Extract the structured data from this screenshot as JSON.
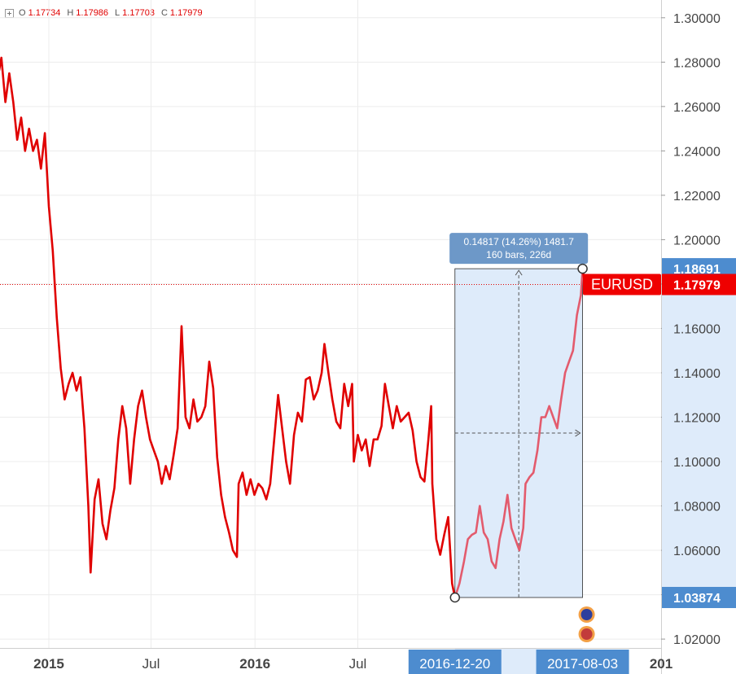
{
  "legend": {
    "open_label": "O",
    "open": "1.17734",
    "high_label": "H",
    "high": "1.17986",
    "low_label": "L",
    "low": "1.17703",
    "close_label": "C",
    "close": "1.17979"
  },
  "chart_data": {
    "type": "line",
    "symbol": "EURUSD",
    "ylim": [
      1.016,
      1.308
    ],
    "y_ticks": [
      "1.30000",
      "1.28000",
      "1.26000",
      "1.24000",
      "1.22000",
      "1.20000",
      "1.18000",
      "1.16000",
      "1.14000",
      "1.12000",
      "1.10000",
      "1.08000",
      "1.06000",
      "1.04000",
      "1.02000"
    ],
    "y_tick_values": [
      1.3,
      1.28,
      1.26,
      1.24,
      1.22,
      1.2,
      1.18,
      1.16,
      1.14,
      1.12,
      1.1,
      1.08,
      1.06,
      1.04,
      1.02
    ],
    "x_start": "2014-09-25",
    "x_end": "2017-12-20",
    "x_ticks": [
      {
        "date": "2015-01-01",
        "label": "2015",
        "bold": true
      },
      {
        "date": "2015-07-01",
        "label": "Jul",
        "bold": false
      },
      {
        "date": "2016-01-01",
        "label": "2016",
        "bold": true
      },
      {
        "date": "2016-07-01",
        "label": "Jul",
        "bold": false
      },
      {
        "date": "2017-12-20",
        "label": "201",
        "bold": true
      }
    ],
    "grid": true,
    "series": [
      {
        "color": "#e00000",
        "points": [
          [
            "2014-09-25",
            1.295
          ],
          [
            "2014-10-02",
            1.272
          ],
          [
            "2014-10-09",
            1.282
          ],
          [
            "2014-10-16",
            1.262
          ],
          [
            "2014-10-23",
            1.275
          ],
          [
            "2014-10-30",
            1.262
          ],
          [
            "2014-11-06",
            1.245
          ],
          [
            "2014-11-13",
            1.255
          ],
          [
            "2014-11-20",
            1.24
          ],
          [
            "2014-11-27",
            1.25
          ],
          [
            "2014-12-04",
            1.24
          ],
          [
            "2014-12-11",
            1.245
          ],
          [
            "2014-12-18",
            1.232
          ],
          [
            "2014-12-25",
            1.248
          ],
          [
            "2015-01-01",
            1.215
          ],
          [
            "2015-01-08",
            1.195
          ],
          [
            "2015-01-15",
            1.165
          ],
          [
            "2015-01-22",
            1.142
          ],
          [
            "2015-01-29",
            1.128
          ],
          [
            "2015-02-05",
            1.135
          ],
          [
            "2015-02-12",
            1.14
          ],
          [
            "2015-02-19",
            1.132
          ],
          [
            "2015-02-26",
            1.138
          ],
          [
            "2015-03-05",
            1.115
          ],
          [
            "2015-03-12",
            1.08
          ],
          [
            "2015-03-16",
            1.05
          ],
          [
            "2015-03-23",
            1.083
          ],
          [
            "2015-03-30",
            1.092
          ],
          [
            "2015-04-06",
            1.072
          ],
          [
            "2015-04-13",
            1.065
          ],
          [
            "2015-04-20",
            1.078
          ],
          [
            "2015-04-27",
            1.088
          ],
          [
            "2015-05-04",
            1.11
          ],
          [
            "2015-05-11",
            1.125
          ],
          [
            "2015-05-18",
            1.115
          ],
          [
            "2015-05-25",
            1.09
          ],
          [
            "2015-06-01",
            1.11
          ],
          [
            "2015-06-08",
            1.125
          ],
          [
            "2015-06-15",
            1.132
          ],
          [
            "2015-06-22",
            1.12
          ],
          [
            "2015-06-29",
            1.11
          ],
          [
            "2015-07-06",
            1.105
          ],
          [
            "2015-07-13",
            1.1
          ],
          [
            "2015-07-20",
            1.09
          ],
          [
            "2015-07-27",
            1.098
          ],
          [
            "2015-08-03",
            1.092
          ],
          [
            "2015-08-10",
            1.103
          ],
          [
            "2015-08-17",
            1.115
          ],
          [
            "2015-08-24",
            1.161
          ],
          [
            "2015-08-31",
            1.12
          ],
          [
            "2015-09-07",
            1.115
          ],
          [
            "2015-09-14",
            1.128
          ],
          [
            "2015-09-21",
            1.118
          ],
          [
            "2015-09-28",
            1.12
          ],
          [
            "2015-10-05",
            1.125
          ],
          [
            "2015-10-12",
            1.145
          ],
          [
            "2015-10-19",
            1.133
          ],
          [
            "2015-10-26",
            1.102
          ],
          [
            "2015-11-02",
            1.085
          ],
          [
            "2015-11-09",
            1.075
          ],
          [
            "2015-11-16",
            1.068
          ],
          [
            "2015-11-23",
            1.06
          ],
          [
            "2015-11-30",
            1.057
          ],
          [
            "2015-12-03",
            1.09
          ],
          [
            "2015-12-10",
            1.095
          ],
          [
            "2015-12-17",
            1.085
          ],
          [
            "2015-12-24",
            1.092
          ],
          [
            "2015-12-31",
            1.085
          ],
          [
            "2016-01-07",
            1.09
          ],
          [
            "2016-01-14",
            1.088
          ],
          [
            "2016-01-21",
            1.083
          ],
          [
            "2016-01-28",
            1.09
          ],
          [
            "2016-02-04",
            1.11
          ],
          [
            "2016-02-11",
            1.13
          ],
          [
            "2016-02-18",
            1.115
          ],
          [
            "2016-02-25",
            1.1
          ],
          [
            "2016-03-03",
            1.09
          ],
          [
            "2016-03-10",
            1.112
          ],
          [
            "2016-03-17",
            1.122
          ],
          [
            "2016-03-24",
            1.118
          ],
          [
            "2016-03-31",
            1.137
          ],
          [
            "2016-04-07",
            1.138
          ],
          [
            "2016-04-14",
            1.128
          ],
          [
            "2016-04-21",
            1.132
          ],
          [
            "2016-04-28",
            1.14
          ],
          [
            "2016-05-03",
            1.153
          ],
          [
            "2016-05-10",
            1.14
          ],
          [
            "2016-05-17",
            1.128
          ],
          [
            "2016-05-24",
            1.118
          ],
          [
            "2016-05-31",
            1.115
          ],
          [
            "2016-06-07",
            1.135
          ],
          [
            "2016-06-14",
            1.125
          ],
          [
            "2016-06-21",
            1.135
          ],
          [
            "2016-06-24",
            1.1
          ],
          [
            "2016-07-01",
            1.112
          ],
          [
            "2016-07-08",
            1.105
          ],
          [
            "2016-07-15",
            1.11
          ],
          [
            "2016-07-22",
            1.098
          ],
          [
            "2016-07-29",
            1.11
          ],
          [
            "2016-08-05",
            1.11
          ],
          [
            "2016-08-12",
            1.116
          ],
          [
            "2016-08-18",
            1.135
          ],
          [
            "2016-08-25",
            1.125
          ],
          [
            "2016-09-01",
            1.115
          ],
          [
            "2016-09-08",
            1.125
          ],
          [
            "2016-09-15",
            1.118
          ],
          [
            "2016-09-22",
            1.12
          ],
          [
            "2016-09-29",
            1.122
          ],
          [
            "2016-10-06",
            1.114
          ],
          [
            "2016-10-13",
            1.1
          ],
          [
            "2016-10-20",
            1.093
          ],
          [
            "2016-10-27",
            1.091
          ],
          [
            "2016-11-03",
            1.11
          ],
          [
            "2016-11-08",
            1.125
          ],
          [
            "2016-11-10",
            1.09
          ],
          [
            "2016-11-17",
            1.065
          ],
          [
            "2016-11-24",
            1.058
          ],
          [
            "2016-12-01",
            1.067
          ],
          [
            "2016-12-08",
            1.075
          ],
          [
            "2016-12-15",
            1.045
          ],
          [
            "2016-12-20",
            1.0387
          ],
          [
            "2016-12-28",
            1.045
          ],
          [
            "2017-01-05",
            1.055
          ],
          [
            "2017-01-12",
            1.065
          ],
          [
            "2017-01-19",
            1.067
          ],
          [
            "2017-01-26",
            1.068
          ],
          [
            "2017-02-02",
            1.08
          ],
          [
            "2017-02-09",
            1.068
          ],
          [
            "2017-02-16",
            1.065
          ],
          [
            "2017-02-23",
            1.055
          ],
          [
            "2017-03-02",
            1.052
          ],
          [
            "2017-03-09",
            1.065
          ],
          [
            "2017-03-16",
            1.073
          ],
          [
            "2017-03-23",
            1.085
          ],
          [
            "2017-03-30",
            1.07
          ],
          [
            "2017-04-06",
            1.065
          ],
          [
            "2017-04-13",
            1.06
          ],
          [
            "2017-04-20",
            1.07
          ],
          [
            "2017-04-24",
            1.09
          ],
          [
            "2017-05-01",
            1.093
          ],
          [
            "2017-05-08",
            1.095
          ],
          [
            "2017-05-15",
            1.105
          ],
          [
            "2017-05-22",
            1.12
          ],
          [
            "2017-05-29",
            1.12
          ],
          [
            "2017-06-05",
            1.125
          ],
          [
            "2017-06-12",
            1.12
          ],
          [
            "2017-06-19",
            1.115
          ],
          [
            "2017-06-26",
            1.128
          ],
          [
            "2017-07-03",
            1.14
          ],
          [
            "2017-07-10",
            1.145
          ],
          [
            "2017-07-17",
            1.15
          ],
          [
            "2017-07-24",
            1.166
          ],
          [
            "2017-07-31",
            1.175
          ],
          [
            "2017-08-03",
            1.1869
          ],
          [
            "2017-08-08",
            1.178
          ],
          [
            "2017-08-10",
            1.1798
          ]
        ]
      }
    ],
    "current_price": 1.17979,
    "measure": {
      "start_date": "2016-12-20",
      "start_value": 1.03874,
      "end_date": "2017-08-03",
      "end_value": 1.18691,
      "line1": "0.14817 (14.26%) 1481.7",
      "line2": "160 bars, 226d"
    },
    "axis_labels": {
      "start_value": "1.03874",
      "end_value": "1.18691",
      "current_value": "1.17979",
      "start_date": "2016-12-20",
      "end_date": "2017-08-03",
      "symbol": "EURUSD"
    },
    "colors": {
      "line": "#e00000",
      "measure_fill": "#deebfa",
      "measure_border": "#2b2b2b",
      "measure_line": "#e35b6d",
      "axis_highlight": "#4d8ccf",
      "label_box": "#6d98c8",
      "grid": "#ececec",
      "price_tag": "#ef0000"
    }
  }
}
